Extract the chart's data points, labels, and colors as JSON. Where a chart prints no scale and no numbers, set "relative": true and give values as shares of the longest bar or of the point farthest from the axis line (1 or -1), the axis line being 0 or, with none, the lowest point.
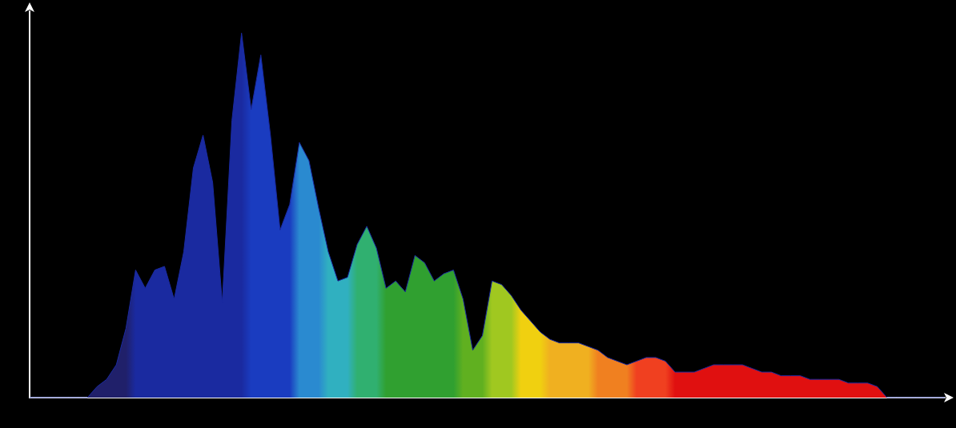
{
  "chart_data": {
    "type": "area",
    "relative": true,
    "grid": false,
    "color": "#1a2aa0",
    "categories": [
      null,
      null,
      null,
      null,
      null,
      null,
      null,
      null,
      null,
      null,
      null,
      null,
      null,
      null,
      null,
      null,
      null,
      null,
      null,
      null,
      null,
      null,
      null,
      null,
      null,
      null,
      null,
      null,
      null,
      null,
      null,
      null,
      null,
      null,
      null,
      null,
      null,
      null,
      null,
      null,
      null,
      null,
      null,
      null,
      null,
      null,
      null,
      null,
      null,
      null,
      null,
      null,
      null,
      null,
      null,
      null,
      null,
      null,
      null,
      null,
      null,
      null,
      null,
      null,
      null,
      null,
      null,
      null,
      null,
      null,
      null,
      null,
      null,
      null,
      null,
      null,
      null,
      null,
      null,
      null,
      null,
      null,
      null,
      null,
      null,
      null,
      null,
      null,
      null,
      null,
      null,
      null,
      null,
      null,
      null,
      null
    ],
    "values": [
      0,
      0,
      0,
      0,
      0,
      0,
      0,
      0.03,
      0.05,
      0.09,
      0.19,
      0.35,
      0.3,
      0.35,
      0.36,
      0.27,
      0.4,
      0.63,
      0.72,
      0.59,
      0.26,
      0.76,
      1,
      0.79,
      0.94,
      0.72,
      0.46,
      0.53,
      0.7,
      0.65,
      0.52,
      0.4,
      0.32,
      0.33,
      0.42,
      0.47,
      0.41,
      0.3,
      0.32,
      0.29,
      0.39,
      0.37,
      0.32,
      0.34,
      0.35,
      0.27,
      0.13,
      0.17,
      0.32,
      0.31,
      0.28,
      0.24,
      0.21,
      0.18,
      0.16,
      0.15,
      0.15,
      0.15,
      0.14,
      0.13,
      0.11,
      0.1,
      0.09,
      0.1,
      0.11,
      0.11,
      0.1,
      0.07,
      0.07,
      0.07,
      0.08,
      0.09,
      0.09,
      0.09,
      0.09,
      0.08,
      0.07,
      0.07,
      0.06,
      0.06,
      0.06,
      0.05,
      0.05,
      0.05,
      0.05,
      0.04,
      0.04,
      0.04,
      0.03,
      0,
      0,
      0,
      0,
      0,
      0,
      0
    ],
    "colors": [
      "#20206a",
      "#20206a",
      "#20206a",
      "#20206a",
      "#20206a",
      "#20206a",
      "#20206a",
      "#20206a",
      "#20206a",
      "#20206a",
      "#20206a",
      "#1a2aa0",
      "#1a2aa0",
      "#1a2aa0",
      "#1a2aa0",
      "#1a2aa0",
      "#1a2aa0",
      "#1a2aa0",
      "#1a2aa0",
      "#1a2aa0",
      "#1a2aa0",
      "#1a2aa0",
      "#1a2aa0",
      "#1a3cc0",
      "#1a3cc0",
      "#1a3cc0",
      "#1a3cc0",
      "#1a3cc0",
      "#2a8ad0",
      "#2a8ad0",
      "#2a8ad0",
      "#30b0c0",
      "#30b0c0",
      "#30b0c0",
      "#30b070",
      "#30b070",
      "#30b070",
      "#30a030",
      "#30a030",
      "#30a030",
      "#30a030",
      "#30a030",
      "#30a030",
      "#30a030",
      "#30a030",
      "#60b020",
      "#60b020",
      "#60b020",
      "#a0c820",
      "#a0c820",
      "#a0c820",
      "#f0d010",
      "#f0d010",
      "#f0d010",
      "#f0b020",
      "#f0b020",
      "#f0b020",
      "#f0b020",
      "#f0b020",
      "#f08020",
      "#f08020",
      "#f08020",
      "#f08020",
      "#f04020",
      "#f04020",
      "#f04020",
      "#f04020",
      "#e01010",
      "#e01010",
      "#e01010",
      "#e01010",
      "#e01010",
      "#e01010",
      "#e01010",
      "#e01010",
      "#e01010",
      "#e01010",
      "#e01010",
      "#e01010",
      "#e01010",
      "#e01010",
      "#e01010",
      "#e01010",
      "#e01010",
      "#e01010",
      "#e01010",
      "#e01010",
      "#e01010",
      "#e01010",
      "#e01010",
      "#e01010",
      "#e01010",
      "#e01010",
      "#e01010",
      "#e01010",
      "#e01010"
    ]
  }
}
